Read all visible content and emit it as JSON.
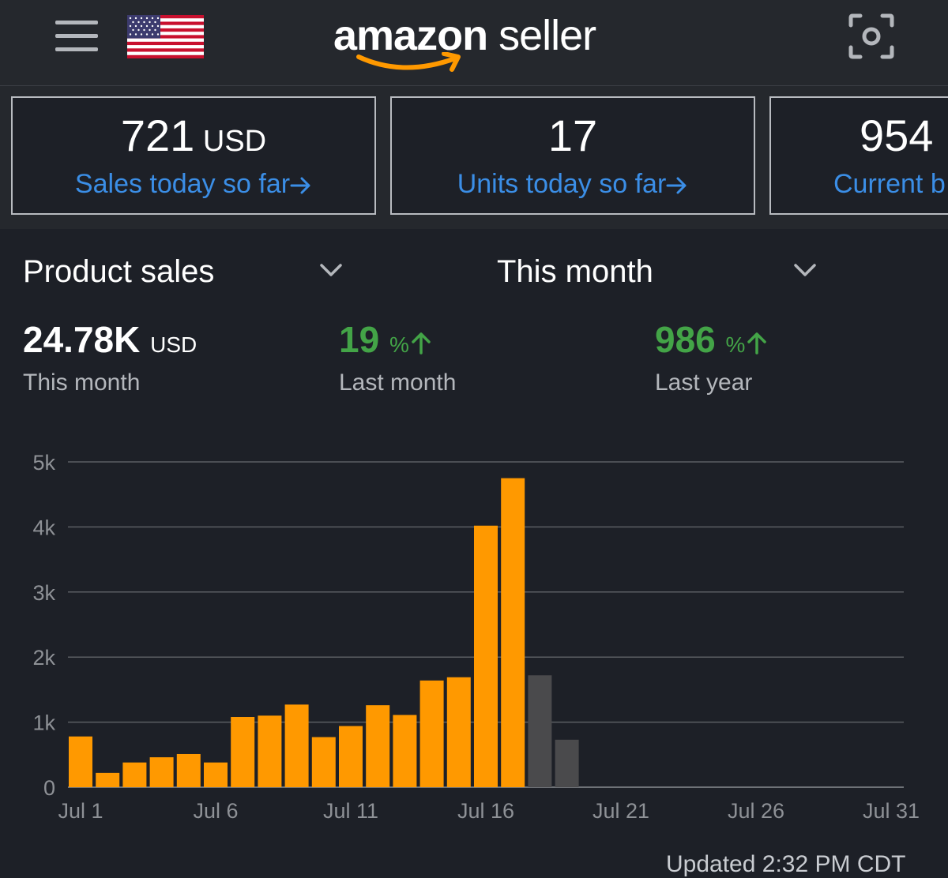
{
  "header": {
    "menu_icon": "hamburger-menu-icon",
    "flag_icon": "us-flag-icon",
    "logo_word1": "amazon",
    "logo_word2": " seller",
    "scan_icon": "camera-scan-icon"
  },
  "cards": [
    {
      "value": "721",
      "unit": " USD",
      "label": "Sales today so far"
    },
    {
      "value": "17",
      "unit": "",
      "label": "Units today so far"
    },
    {
      "value": "954",
      "unit": "",
      "label": "Current b"
    }
  ],
  "controls": {
    "metric": "Product sales",
    "period": "This month"
  },
  "stats": {
    "total": {
      "value": "24.78K",
      "unit": "USD",
      "label": "This month"
    },
    "vs_month": {
      "value": "19",
      "unit": "%",
      "label": "Last month"
    },
    "vs_year": {
      "value": "986",
      "unit": "%",
      "label": "Last year"
    }
  },
  "colors": {
    "accent_orange": "#ff9900",
    "projected_gray": "#4a4a4c",
    "link_blue": "#3b8ee6",
    "positive_green": "#43a447"
  },
  "chart_data": {
    "type": "bar",
    "ylim": [
      0,
      5000
    ],
    "y_ticks": [
      0,
      1000,
      2000,
      3000,
      4000,
      5000
    ],
    "y_tick_labels": [
      "0",
      "1k",
      "2k",
      "3k",
      "4k",
      "5k"
    ],
    "x_tick_days": [
      1,
      6,
      11,
      16,
      21,
      26,
      31
    ],
    "x_tick_labels": [
      "Jul 1",
      "Jul 6",
      "Jul 11",
      "Jul 16",
      "Jul 21",
      "Jul 26",
      "Jul 31"
    ],
    "grid": true,
    "series": [
      {
        "days": [
          1,
          2,
          3,
          4,
          5,
          6,
          7,
          8,
          9,
          10,
          11,
          12,
          13,
          14,
          15,
          16,
          17
        ],
        "values": [
          780,
          220,
          380,
          460,
          510,
          380,
          1080,
          1100,
          1270,
          770,
          940,
          1260,
          1110,
          1640,
          1690,
          4020,
          4750
        ],
        "color": "#ff9900"
      },
      {
        "days": [
          18,
          19
        ],
        "values": [
          1720,
          730
        ],
        "color": "#4a4a4c"
      }
    ]
  },
  "footer": {
    "updated": "Updated 2:32 PM CDT"
  }
}
